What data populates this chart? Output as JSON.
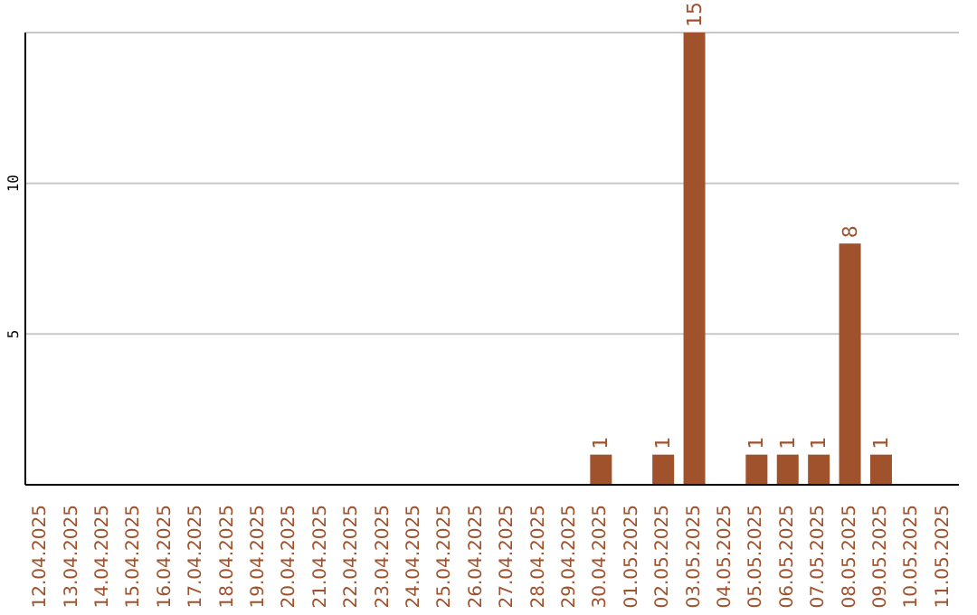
{
  "chart_data": {
    "type": "bar",
    "categories": [
      "12.04.2025",
      "13.04.2025",
      "14.04.2025",
      "15.04.2025",
      "16.04.2025",
      "17.04.2025",
      "18.04.2025",
      "19.04.2025",
      "20.04.2025",
      "21.04.2025",
      "22.04.2025",
      "23.04.2025",
      "24.04.2025",
      "25.04.2025",
      "26.04.2025",
      "27.04.2025",
      "28.04.2025",
      "29.04.2025",
      "30.04.2025",
      "01.05.2025",
      "02.05.2025",
      "03.05.2025",
      "04.05.2025",
      "05.05.2025",
      "06.05.2025",
      "07.05.2025",
      "08.05.2025",
      "09.05.2025",
      "10.05.2025",
      "11.05.2025"
    ],
    "values": [
      0,
      0,
      0,
      0,
      0,
      0,
      0,
      0,
      0,
      0,
      0,
      0,
      0,
      0,
      0,
      0,
      0,
      0,
      1,
      0,
      1,
      15,
      0,
      1,
      1,
      1,
      8,
      1,
      0,
      0
    ],
    "value_labels": [
      null,
      null,
      null,
      null,
      null,
      null,
      null,
      null,
      null,
      null,
      null,
      null,
      null,
      null,
      null,
      null,
      null,
      null,
      "1",
      null,
      "1",
      "15",
      null,
      "1",
      "1",
      "1",
      "8",
      "1",
      null,
      null
    ],
    "color": "#a0522d",
    "ylim": [
      0,
      15
    ],
    "yticks": [
      5,
      10
    ],
    "grid": "y"
  }
}
